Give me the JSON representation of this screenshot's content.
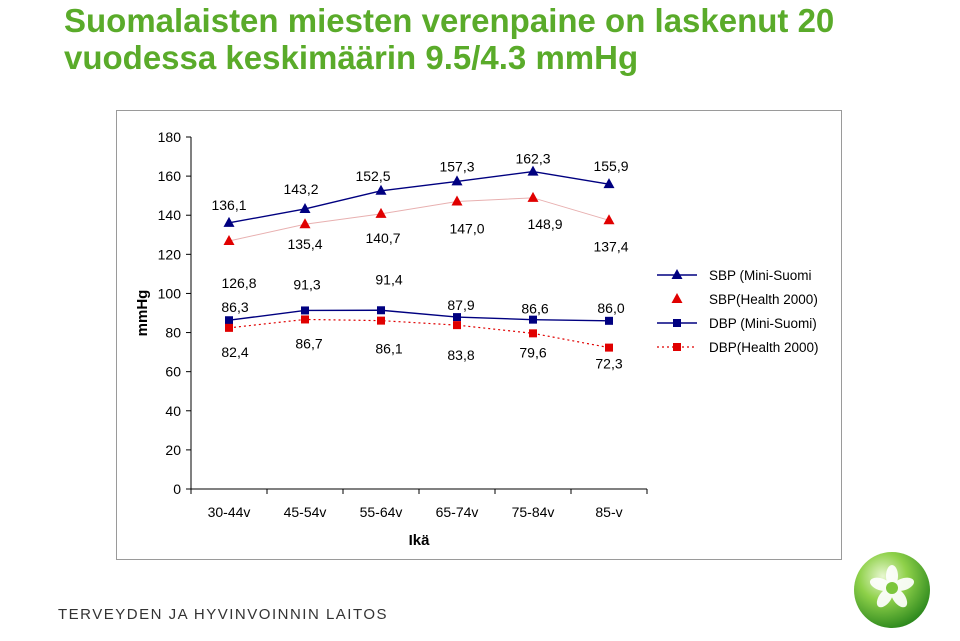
{
  "title": "Suomalaisten miesten verenpaine on  laskenut 20 vuodessa keskimäärin 9.5/4.3 mmHg",
  "footer": "TERVEYDEN JA HYVINVOINNIN LAITOS",
  "chart_data": {
    "type": "line",
    "title": "",
    "xlabel": "Ikä",
    "ylabel": "mmHg",
    "ylim": [
      0,
      180
    ],
    "yticks": [
      "0",
      "20",
      "40",
      "60",
      "80",
      "100",
      "120",
      "140",
      "160",
      "180"
    ],
    "categories": [
      "30-44v",
      "45-54v",
      "55-64v",
      "65-74v",
      "75-84v",
      "85-v"
    ],
    "grid": false,
    "legend_position": "right",
    "series": [
      {
        "name": "SBP (Mini-Suomi",
        "values": [
          136.1,
          143.2,
          152.5,
          157.3,
          162.3,
          155.9
        ],
        "labels": [
          "136,1",
          "143,2",
          "152,5",
          "157,3",
          "162,3",
          "155,9"
        ],
        "color": "#000080",
        "marker": "triangle",
        "line": "solid"
      },
      {
        "name": "SBP(Health 2000)",
        "values": [
          126.8,
          135.4,
          140.7,
          147.0,
          148.9,
          137.4
        ],
        "labels": [
          "126,8",
          "135,4",
          "140,7",
          "147,0",
          "148,9",
          "137,4"
        ],
        "color": "#e00000",
        "marker": "triangle",
        "line": "none"
      },
      {
        "name": "DBP (Mini-Suomi)",
        "values": [
          86.3,
          91.3,
          91.4,
          87.9,
          86.6,
          86.0
        ],
        "labels": [
          "86,3",
          "91,3",
          "91,4",
          "87,9",
          "86,6",
          "86,0"
        ],
        "color": "#000080",
        "marker": "square",
        "line": "solid"
      },
      {
        "name": "DBP(Health 2000)",
        "values": [
          82.4,
          86.7,
          86.1,
          83.8,
          79.6,
          72.3
        ],
        "labels": [
          "82,4",
          "86,7",
          "86,1",
          "83,8",
          "79,6",
          "72,3"
        ],
        "color": "#e00000",
        "marker": "square",
        "line": "dotted"
      }
    ]
  }
}
